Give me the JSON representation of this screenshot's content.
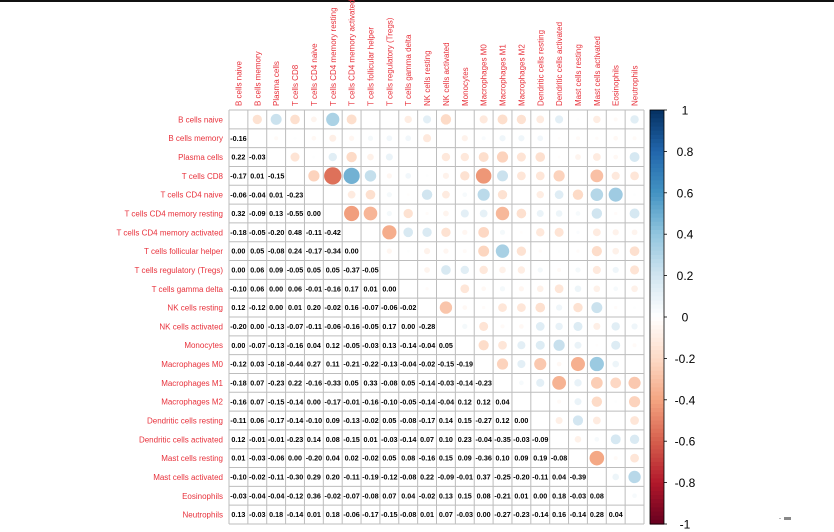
{
  "chart_data": {
    "type": "heatmap",
    "style": "corrplot-mixed",
    "upper": "circle",
    "lower": "number",
    "variables": [
      "B cells naive",
      "B cells memory",
      "Plasma cells",
      "T cells CD8",
      "T cells CD4 naive",
      "T cells CD4 memory resting",
      "T cells CD4 memory activated",
      "T cells follicular helper",
      "T cells regulatory (Tregs)",
      "T cells gamma delta",
      "NK cells resting",
      "NK cells activated",
      "Monocytes",
      "Macrophages M0",
      "Macrophages M1",
      "Macrophages M2",
      "Dendritic cells resting",
      "Dendritic cells activated",
      "Mast cells resting",
      "Mast cells activated",
      "Eosinophils",
      "Neutrophils"
    ],
    "lower_triangle": [
      [],
      [
        -0.16
      ],
      [
        0.22,
        -0.03
      ],
      [
        -0.17,
        0.01,
        -0.15
      ],
      [
        -0.06,
        -0.04,
        0.01,
        -0.23
      ],
      [
        0.32,
        -0.09,
        0.13,
        -0.55,
        0.0
      ],
      [
        -0.18,
        -0.05,
        -0.2,
        0.48,
        -0.11,
        -0.42
      ],
      [
        0.0,
        0.05,
        -0.08,
        0.24,
        -0.17,
        -0.34,
        0.0
      ],
      [
        0.0,
        0.06,
        0.09,
        -0.05,
        0.05,
        0.05,
        -0.37,
        -0.05
      ],
      [
        -0.1,
        0.06,
        0.0,
        0.06,
        -0.01,
        -0.16,
        0.17,
        0.01,
        0.0
      ],
      [
        0.12,
        -0.12,
        0.0,
        0.01,
        0.2,
        -0.02,
        0.16,
        -0.07,
        -0.06,
        -0.02
      ],
      [
        -0.2,
        0.0,
        -0.13,
        -0.07,
        -0.11,
        -0.06,
        -0.16,
        -0.05,
        0.17,
        0.0,
        -0.28
      ],
      [
        0.0,
        -0.07,
        -0.13,
        -0.16,
        0.04,
        0.12,
        -0.05,
        -0.03,
        0.13,
        -0.14,
        -0.04,
        0.05
      ],
      [
        -0.12,
        0.03,
        -0.18,
        -0.44,
        0.27,
        0.11,
        -0.21,
        -0.22,
        -0.13,
        -0.04,
        -0.02,
        -0.15,
        -0.19
      ],
      [
        -0.18,
        0.07,
        -0.23,
        0.22,
        -0.16,
        -0.33,
        0.05,
        0.33,
        -0.08,
        0.05,
        -0.14,
        -0.03,
        -0.14,
        -0.23
      ],
      [
        -0.16,
        0.07,
        -0.15,
        -0.14,
        0.0,
        -0.17,
        -0.01,
        -0.16,
        -0.1,
        -0.05,
        -0.14,
        -0.04,
        0.12,
        0.12,
        0.04
      ],
      [
        -0.11,
        0.06,
        -0.17,
        -0.14,
        -0.1,
        0.09,
        -0.13,
        -0.02,
        0.05,
        -0.08,
        -0.17,
        0.14,
        0.15,
        -0.27,
        0.12,
        0.0
      ],
      [
        0.12,
        -0.01,
        -0.01,
        -0.23,
        0.14,
        0.08,
        -0.15,
        0.01,
        -0.03,
        -0.14,
        0.07,
        0.1,
        0.23,
        -0.04,
        -0.35,
        -0.03,
        -0.09
      ],
      [
        0.01,
        -0.03,
        -0.06,
        0.0,
        -0.2,
        0.04,
        0.02,
        -0.02,
        0.05,
        0.08,
        -0.16,
        0.15,
        0.09,
        -0.36,
        0.1,
        0.09,
        0.19,
        -0.08
      ],
      [
        -0.1,
        -0.02,
        -0.11,
        -0.3,
        0.29,
        0.2,
        -0.11,
        -0.19,
        -0.12,
        -0.08,
        0.22,
        -0.09,
        -0.01,
        0.37,
        -0.25,
        -0.2,
        -0.11,
        0.04,
        -0.39
      ],
      [
        -0.03,
        -0.04,
        -0.04,
        -0.12,
        0.36,
        -0.02,
        -0.07,
        -0.08,
        0.07,
        0.04,
        -0.02,
        0.13,
        0.15,
        0.08,
        -0.21,
        0.01,
        0.0,
        0.18,
        -0.03,
        0.08
      ],
      [
        0.13,
        -0.03,
        0.18,
        -0.14,
        0.01,
        0.18,
        -0.06,
        -0.17,
        -0.15,
        -0.08,
        0.01,
        0.07,
        -0.03,
        0.0,
        -0.27,
        -0.23,
        -0.14,
        0.16,
        -0.14,
        0.28,
        0.04
      ]
    ],
    "colorbar": {
      "range": [
        -1,
        1
      ],
      "ticks": [
        "1",
        "0.8",
        "0.6",
        "0.4",
        "0.2",
        "0",
        "-0.2",
        "-0.4",
        "-0.6",
        "-0.8",
        "-1"
      ],
      "tick_values": [
        1,
        0.8,
        0.6,
        0.4,
        0.2,
        0,
        -0.2,
        -0.4,
        -0.6,
        -0.8,
        -1
      ],
      "placement": "right"
    },
    "colors": {
      "neg_strong": "#67001f",
      "neg_mid": "#d6604d",
      "neg_light": "#fddbc7",
      "zero": "#ffffff",
      "pos_light": "#d1e5f0",
      "pos_mid": "#4393c3",
      "pos_strong": "#053061",
      "label": "#e8323c",
      "grid": "#bdbdbd"
    },
    "grid": true,
    "legend_placement": "right"
  }
}
